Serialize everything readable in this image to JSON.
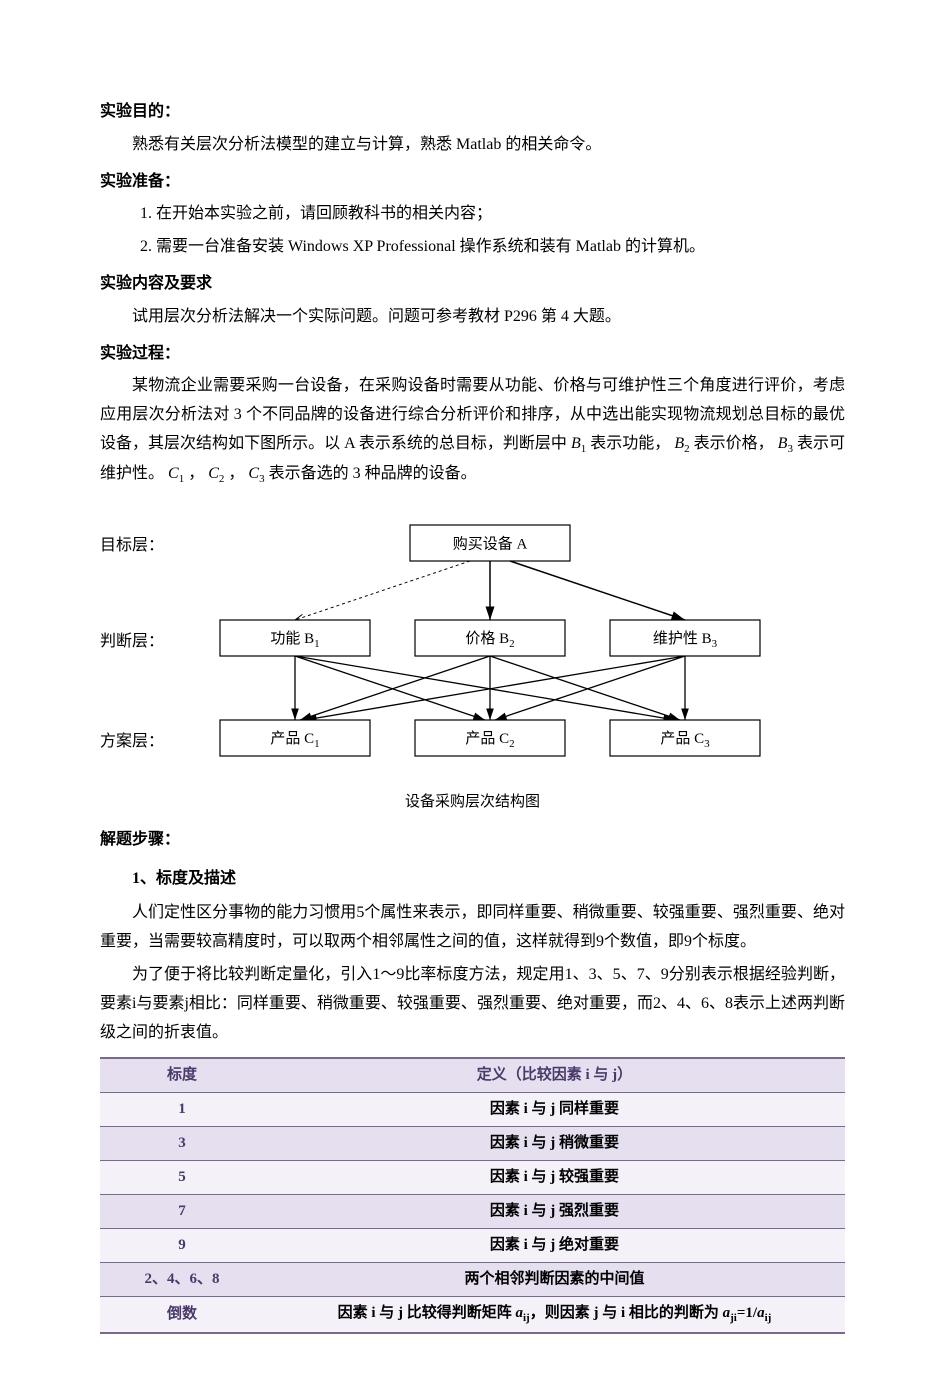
{
  "sections": {
    "purpose": {
      "title": "实验目的：",
      "body": "熟悉有关层次分析法模型的建立与计算，熟悉 Matlab 的相关命令。"
    },
    "prep": {
      "title": "实验准备：",
      "items": [
        "1.  在开始本实验之前，请回顾教科书的相关内容；",
        "2.  需要一台准备安装 Windows XP Professional 操作系统和装有 Matlab 的计算机。"
      ]
    },
    "content": {
      "title": "实验内容及要求",
      "body": "试用层次分析法解决一个实际问题。问题可参考教材 P296 第 4 大题。"
    },
    "process": {
      "title": "实验过程：",
      "body_parts": [
        "某物流企业需要采购一台设备，在采购设备时需要从功能、价格与可维护性三个角度进行评价，考虑应用层次分析法对 3 个不同品牌的设备进行综合分析评价和排序，从中选出能实现物流规划总目标的最优设备，其层次结构如下图所示。以 A 表示系统的总目标，判断层中 ",
        " 表示功能，",
        " 表示价格，",
        " 表示可维护性。",
        "，",
        "，",
        " 表示备选的 3 种品牌的设备。"
      ],
      "symbols": {
        "b1": "B",
        "b2": "B",
        "b3": "B",
        "c1": "C",
        "c2": "C",
        "c3": "C"
      }
    },
    "diagram": {
      "layers": {
        "l1": "目标层：",
        "l2": "判断层：",
        "l3": "方案层："
      },
      "nodes": {
        "top": "购买设备 A",
        "b1": "功能 B",
        "b1_sub": "1",
        "b2": "价格 B",
        "b2_sub": "2",
        "b3": "维护性 B",
        "b3_sub": "3",
        "c1": "产品 C",
        "c1_sub": "1",
        "c2": "产品 C",
        "c2_sub": "2",
        "c3": "产品 C",
        "c3_sub": "3"
      },
      "caption": "设备采购层次结构图",
      "style": {
        "node_fill": "#ffffff",
        "node_stroke": "#000000",
        "line_stroke": "#000000",
        "dotted_dash": "3,3"
      }
    },
    "steps_title": "解题步骤：",
    "step1": {
      "heading": "1、标度及描述",
      "p1": "人们定性区分事物的能力习惯用5个属性来表示，即同样重要、稍微重要、较强重要、强烈重要、绝对重要，当需要较高精度时，可以取两个相邻属性之间的值，这样就得到9个数值，即9个标度。",
      "p2": "为了便于将比较判断定量化，引入1～9比率标度方法，规定用1、3、5、7、9分别表示根据经验判断，要素i与要素j相比：同样重要、稍微重要、较强重要、强烈重要、绝对重要，而2、4、6、8表示上述两判断级之间的折衷值。"
    },
    "table": {
      "headers": [
        "标度",
        "定义（比较因素 i 与 j）"
      ],
      "rows": [
        [
          "1",
          "因素 i 与 j 同样重要"
        ],
        [
          "3",
          "因素 i 与 j 稍微重要"
        ],
        [
          "5",
          "因素 i 与 j 较强重要"
        ],
        [
          "7",
          "因素 i 与 j 强烈重要"
        ],
        [
          "9",
          "因素 i 与 j 绝对重要"
        ],
        [
          "2、4、6、8",
          "两个相邻判断因素的中间值"
        ],
        [
          "倒数",
          "__LASTROW__"
        ]
      ],
      "lastrow_parts": {
        "p1": "因素 i 与 j 比较得判断矩阵 ",
        "a1": "a",
        "sub1": "ij",
        "p2": "，则因素 j 与 i 相比的判断为 ",
        "a2": "a",
        "sub2": "ji",
        "eq": "=1/",
        "a3": "a",
        "sub3": "ij"
      },
      "style": {
        "header_bg": "#e6dff0",
        "row_odd_bg": "#f5f1f9",
        "row_even_bg": "#e6dff0",
        "border_color": "#7a6a8a",
        "text_color": "#4a3a6a"
      }
    }
  }
}
